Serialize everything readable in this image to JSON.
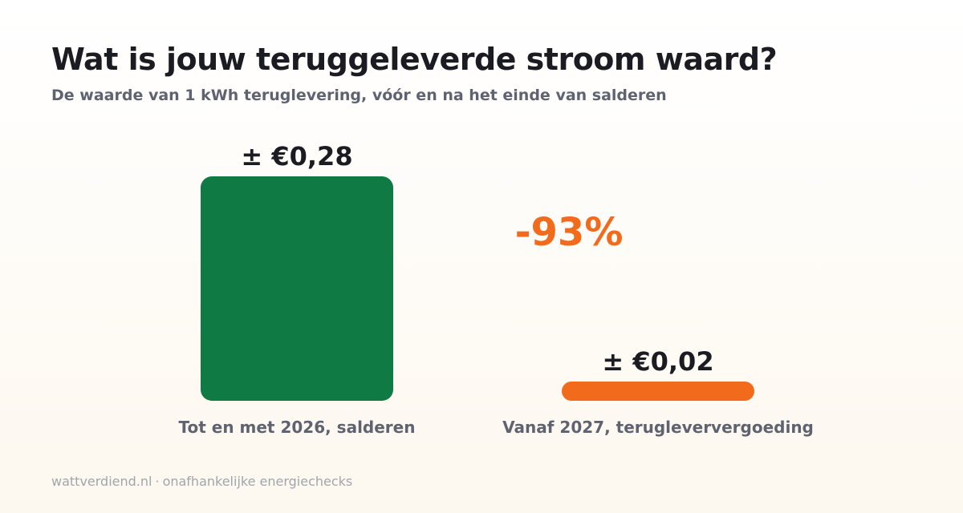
{
  "header": {
    "title": "Wat is jouw teruggeleverde stroom waard?",
    "subtitle": "De waarde van 1 kWh teruglevering, vóór en na het einde van salderen"
  },
  "chart_data": {
    "type": "bar",
    "title": "Wat is jouw teruggeleverde stroom waard?",
    "subtitle": "De waarde van 1 kWh teruglevering, vóór en na het einde van salderen",
    "categories": [
      "Tot en met 2026, salderen",
      "Vanaf 2027, terugleververgoeding"
    ],
    "values": [
      0.28,
      0.02
    ],
    "data_labels": [
      "± €0,28",
      "± €0,02"
    ],
    "colors": [
      "#107a45",
      "#f26a1b"
    ],
    "annotation": {
      "text": "-93%",
      "color": "#f26a1b"
    },
    "ylim": [
      0,
      0.28
    ],
    "grid": false,
    "legend": "none"
  },
  "footer": {
    "site": "wattverdiend.nl",
    "separator": "·",
    "tagline": "onafhankelijke energiechecks"
  }
}
